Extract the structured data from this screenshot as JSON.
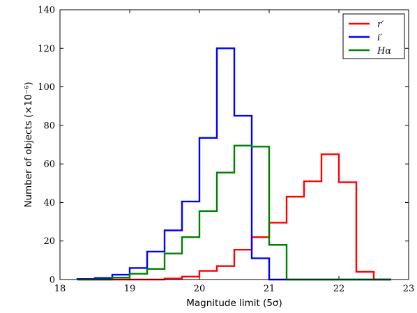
{
  "chart_data": {
    "type": "step-histogram",
    "xlabel": "Magnitude limit (5σ)",
    "ylabel": "Number of objects (×10⁻⁶)",
    "xlim": [
      18,
      23
    ],
    "ylim": [
      0,
      140
    ],
    "x_ticks": [
      "18",
      "19",
      "20",
      "21",
      "22",
      "23"
    ],
    "y_ticks": [
      "0",
      "20",
      "40",
      "60",
      "80",
      "100",
      "120",
      "140"
    ],
    "grid": false,
    "legend_position": "top-right",
    "bin_edges": [
      18.25,
      18.5,
      18.75,
      19.0,
      19.25,
      19.5,
      19.75,
      20.0,
      20.25,
      20.5,
      20.75,
      21.0,
      21.25,
      21.5,
      21.75,
      22.0,
      22.25,
      22.5,
      22.75
    ],
    "series": [
      {
        "name": "r′",
        "color": "#ff0000",
        "values": [
          0,
          0,
          0,
          0,
          0,
          0.5,
          1.5,
          4.5,
          7,
          15.5,
          22,
          29.5,
          43,
          51,
          65,
          50.5,
          4,
          0
        ]
      },
      {
        "name": "i′",
        "color": "#0000ff",
        "values": [
          0.3,
          0.8,
          2.5,
          6,
          14.5,
          25.5,
          40.5,
          73.5,
          120,
          85,
          11,
          0,
          0,
          0,
          0,
          0,
          0,
          0
        ]
      },
      {
        "name": "Hα",
        "color": "#008000",
        "values": [
          0,
          0,
          1,
          3,
          5.5,
          13.5,
          22,
          35.5,
          55.5,
          69.5,
          69,
          18,
          0,
          0,
          0,
          0,
          0,
          0
        ]
      }
    ]
  }
}
